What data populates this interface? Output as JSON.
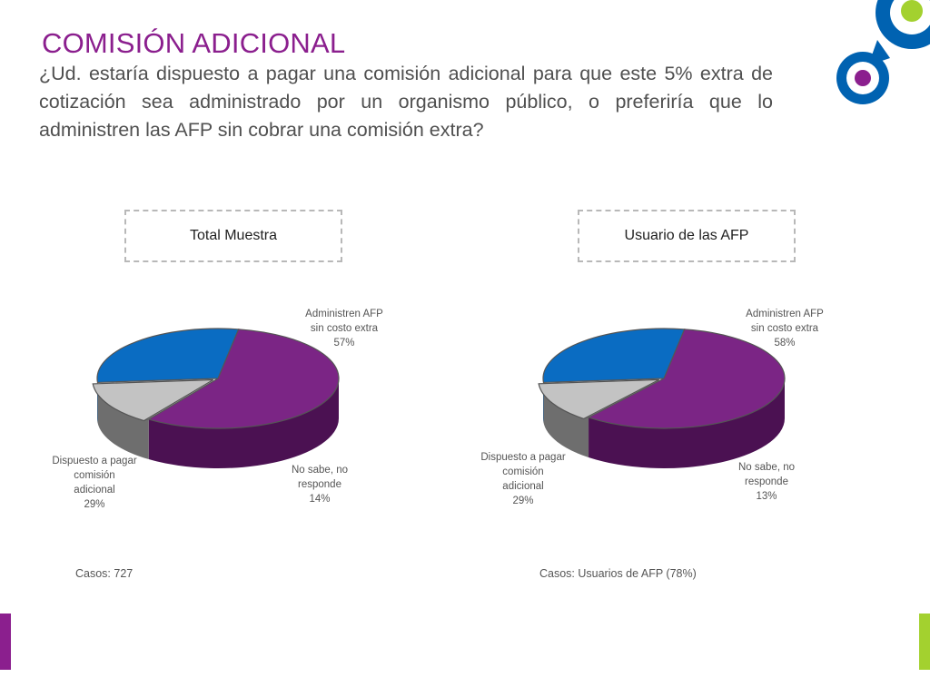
{
  "title": "COMISIÓN ADICIONAL",
  "question": "¿Ud. estaría dispuesto a pagar una comisión adicional para que este 5% extra de cotización sea administrado por un organismo público, o preferiría que lo administren las AFP sin cobrar una comisión extra?",
  "colors": {
    "title": "#8B1F8E",
    "afp_sin_costo": "#7B2585",
    "dispuesto_pagar": "#0A6CC2",
    "no_sabe": "#C3C3C3",
    "accent_green": "#A3D12F",
    "accent_blue": "#0062B1",
    "accent_purple": "#8B1F8E"
  },
  "decor_icons": [
    "blue-ring-circle-icon",
    "green-dot-icon",
    "purple-dot-icon"
  ],
  "chart_data": [
    {
      "type": "pie",
      "title": "Total Muestra",
      "slices": [
        {
          "label_lines": [
            "Administren AFP",
            "sin costo extra",
            "57%"
          ],
          "name": "Administren AFP sin costo extra",
          "value": 57
        },
        {
          "label_lines": [
            "No sabe, no",
            "responde",
            "14%"
          ],
          "name": "No sabe, no responde",
          "value": 14
        },
        {
          "label_lines": [
            "Dispuesto a pagar",
            "comisión",
            "adicional",
            "29%"
          ],
          "name": "Dispuesto a pagar comisión adicional",
          "value": 29
        }
      ],
      "footnote": "Casos: 727"
    },
    {
      "type": "pie",
      "title": "Usuario de las AFP",
      "slices": [
        {
          "label_lines": [
            "Administren AFP",
            "sin costo extra",
            "58%"
          ],
          "name": "Administren AFP sin costo extra",
          "value": 58
        },
        {
          "label_lines": [
            "No sabe, no",
            "responde",
            "13%"
          ],
          "name": "No sabe, no responde",
          "value": 13
        },
        {
          "label_lines": [
            "Dispuesto a pagar",
            "comisión",
            "adicional",
            "29%"
          ],
          "name": "Dispuesto a pagar comisión adicional",
          "value": 29
        }
      ],
      "footnote": "Casos: Usuarios de AFP (78%)"
    }
  ]
}
